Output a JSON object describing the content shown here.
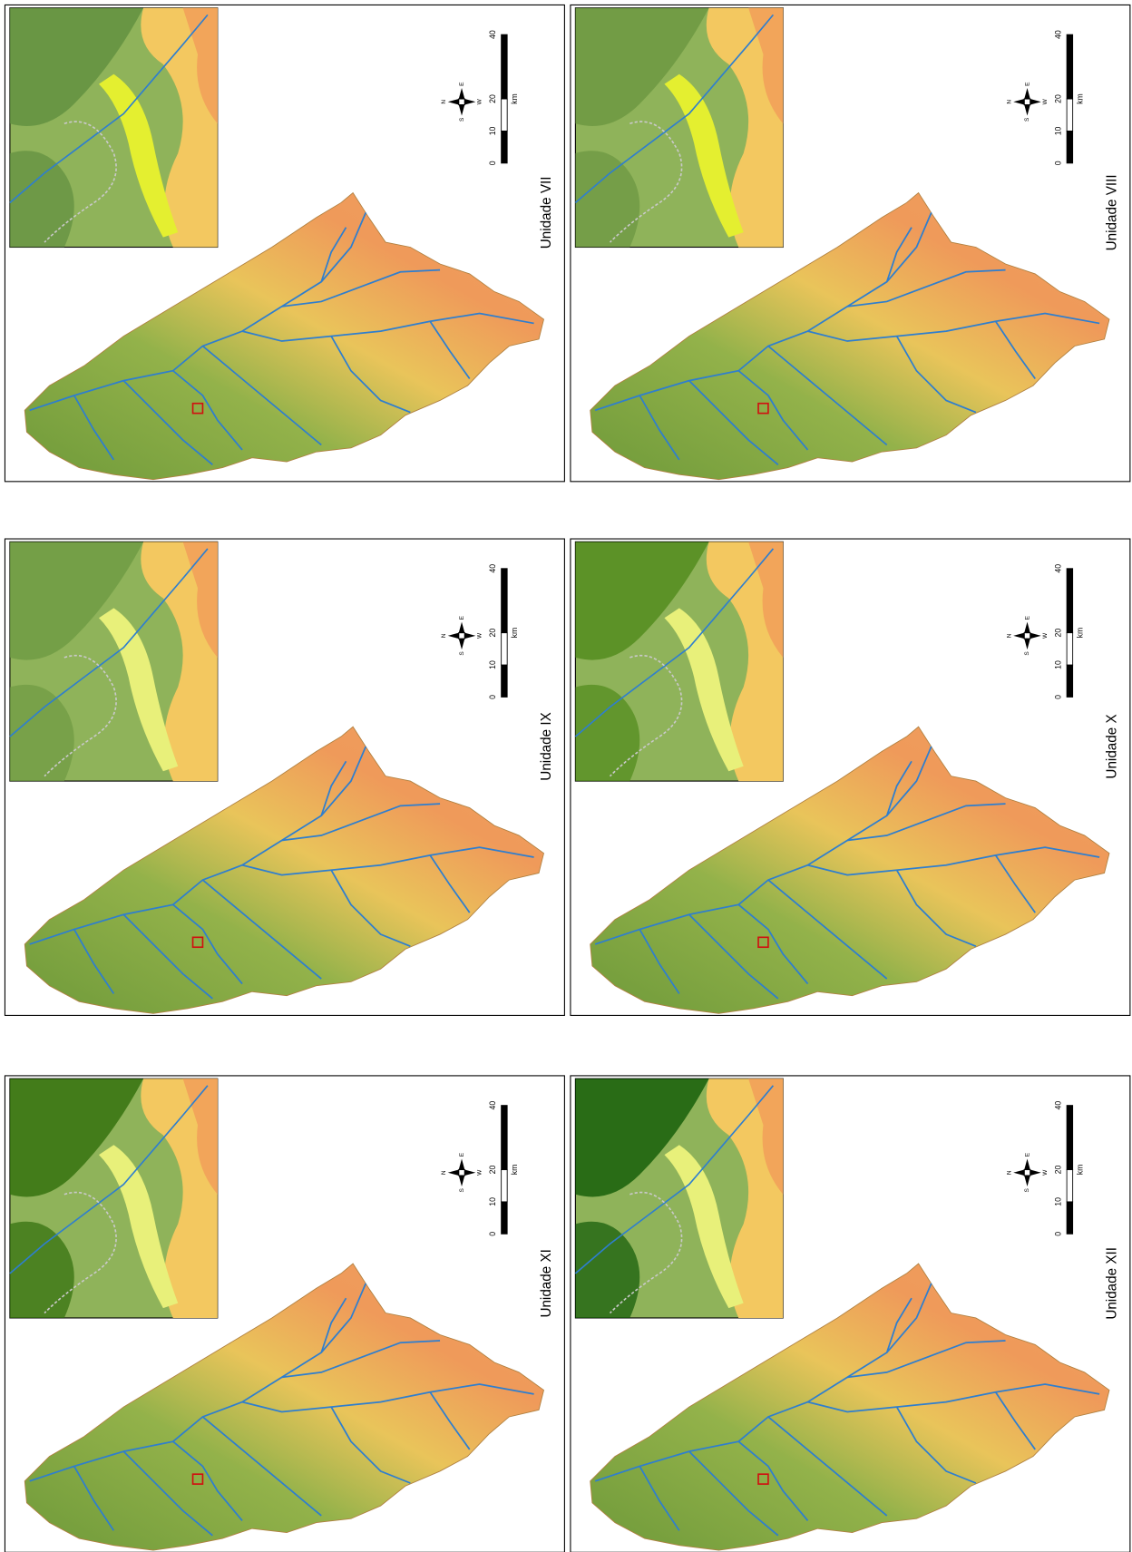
{
  "panels": [
    {
      "title": "Unidade VII"
    },
    {
      "title": "Unidade VIII"
    },
    {
      "title": "Unidade IX"
    },
    {
      "title": "Unidade X"
    },
    {
      "title": "Unidade XI"
    },
    {
      "title": "Unidade XII"
    }
  ],
  "scale": {
    "ticks": [
      0,
      10,
      20,
      40
    ],
    "unit": "km"
  },
  "compass": {
    "north": "N",
    "east": "E",
    "south": "S",
    "west": "W"
  }
}
